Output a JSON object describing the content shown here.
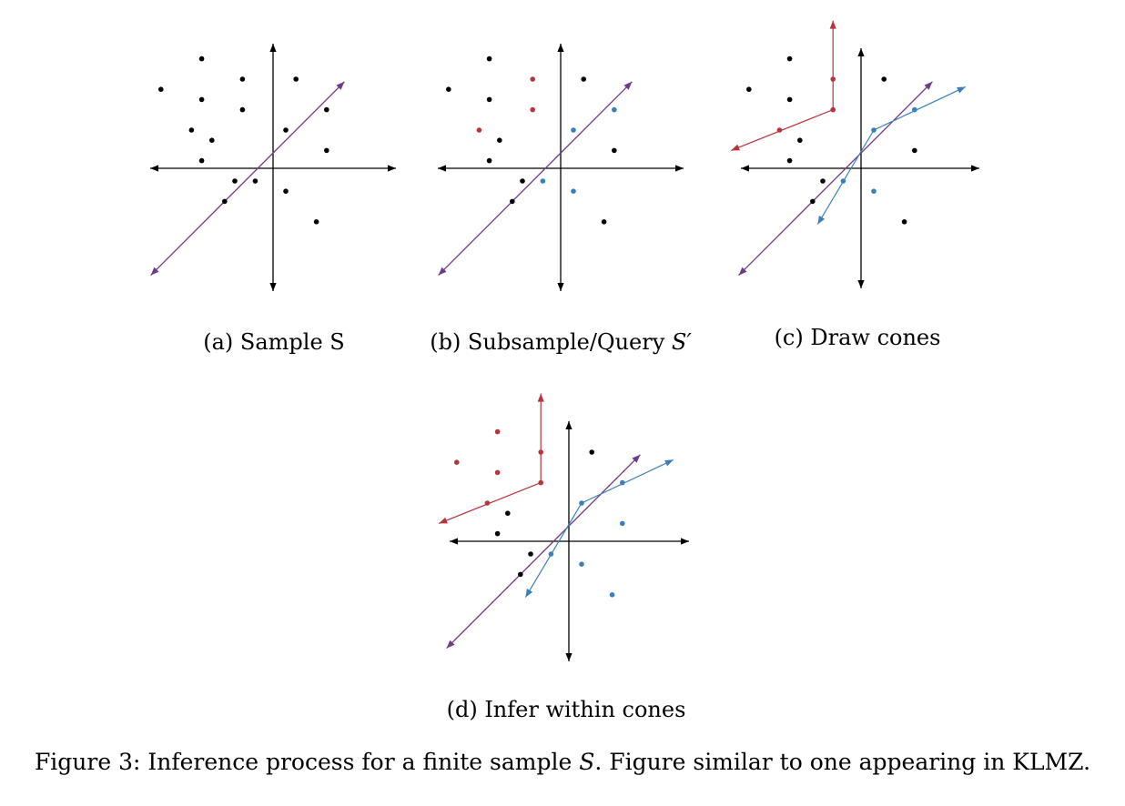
{
  "colors": {
    "axis": "#000000",
    "black_point": "#000000",
    "red": "#b5353d",
    "blue": "#3a7fb8",
    "purple": "#6f3a8a"
  },
  "panels": [
    {
      "id": "a",
      "caption_prefix": "(a) Sample S",
      "caption_math": "",
      "points": [
        [
          -1.4,
          2.15,
          "k"
        ],
        [
          -0.6,
          1.75,
          "k"
        ],
        [
          0.45,
          1.75,
          "k"
        ],
        [
          -2.2,
          1.55,
          "k"
        ],
        [
          -1.4,
          1.35,
          "k"
        ],
        [
          -0.6,
          1.15,
          "k"
        ],
        [
          1.05,
          1.15,
          "k"
        ],
        [
          -1.6,
          0.75,
          "k"
        ],
        [
          0.25,
          0.75,
          "k"
        ],
        [
          -1.2,
          0.55,
          "k"
        ],
        [
          1.05,
          0.35,
          "k"
        ],
        [
          -1.4,
          0.15,
          "k"
        ],
        [
          -0.75,
          -0.25,
          "k"
        ],
        [
          -0.35,
          -0.25,
          "k"
        ],
        [
          0.25,
          -0.45,
          "k"
        ],
        [
          -0.95,
          -0.65,
          "k"
        ],
        [
          0.85,
          -1.05,
          "k"
        ]
      ],
      "cones": []
    },
    {
      "id": "b",
      "caption_prefix": "(b) Subsample/Query ",
      "caption_math": "S′",
      "points": [
        [
          -1.4,
          2.15,
          "k"
        ],
        [
          -0.55,
          1.75,
          "r"
        ],
        [
          0.45,
          1.75,
          "k"
        ],
        [
          -2.2,
          1.55,
          "k"
        ],
        [
          -1.4,
          1.35,
          "k"
        ],
        [
          -0.55,
          1.15,
          "r"
        ],
        [
          1.05,
          1.15,
          "b"
        ],
        [
          -1.6,
          0.75,
          "r"
        ],
        [
          0.25,
          0.75,
          "b"
        ],
        [
          -1.2,
          0.55,
          "k"
        ],
        [
          1.05,
          0.35,
          "k"
        ],
        [
          -1.4,
          0.15,
          "k"
        ],
        [
          -0.75,
          -0.25,
          "k"
        ],
        [
          -0.35,
          -0.25,
          "b"
        ],
        [
          0.25,
          -0.45,
          "b"
        ],
        [
          -0.95,
          -0.65,
          "k"
        ],
        [
          0.85,
          -1.05,
          "k"
        ]
      ],
      "cones": []
    },
    {
      "id": "c",
      "caption_prefix": "(c) Draw cones",
      "caption_math": "",
      "points": [
        [
          -1.4,
          2.15,
          "k"
        ],
        [
          0.45,
          1.75,
          "k"
        ],
        [
          -2.2,
          1.55,
          "k"
        ],
        [
          -1.4,
          1.35,
          "k"
        ],
        [
          1.05,
          0.35,
          "k"
        ],
        [
          -1.2,
          0.55,
          "k"
        ],
        [
          -1.4,
          0.15,
          "k"
        ],
        [
          -0.75,
          -0.25,
          "k"
        ],
        [
          -0.95,
          -0.65,
          "k"
        ],
        [
          0.85,
          -1.05,
          "k"
        ],
        [
          -0.55,
          1.75,
          "r"
        ],
        [
          -0.55,
          1.15,
          "r"
        ],
        [
          -1.6,
          0.75,
          "r"
        ],
        [
          1.05,
          1.15,
          "b"
        ],
        [
          0.25,
          0.75,
          "b"
        ],
        [
          -0.35,
          -0.25,
          "b"
        ],
        [
          0.25,
          -0.45,
          "b"
        ]
      ],
      "cones": [
        {
          "color": "r",
          "vertex": [
            -0.55,
            1.15
          ],
          "ends": [
            [
              -0.55,
              2.9
            ],
            [
              -2.55,
              0.35
            ]
          ]
        },
        {
          "color": "b",
          "vertex": [
            0.25,
            0.75
          ],
          "ends": [
            [
              2.05,
              1.6
            ],
            [
              -0.85,
              -1.1
            ]
          ]
        }
      ]
    },
    {
      "id": "d",
      "caption_prefix": "(d) Infer within cones",
      "caption_math": "",
      "points": [
        [
          -1.4,
          2.15,
          "r"
        ],
        [
          -2.2,
          1.55,
          "r"
        ],
        [
          -0.55,
          1.75,
          "r"
        ],
        [
          -1.4,
          1.35,
          "r"
        ],
        [
          -0.55,
          1.15,
          "r"
        ],
        [
          -1.6,
          0.75,
          "r"
        ],
        [
          0.45,
          1.75,
          "k"
        ],
        [
          -1.2,
          0.55,
          "k"
        ],
        [
          -1.4,
          0.15,
          "k"
        ],
        [
          -0.75,
          -0.25,
          "k"
        ],
        [
          -0.95,
          -0.65,
          "k"
        ],
        [
          1.05,
          1.15,
          "b"
        ],
        [
          0.25,
          0.75,
          "b"
        ],
        [
          1.05,
          0.35,
          "b"
        ],
        [
          -0.35,
          -0.25,
          "b"
        ],
        [
          0.25,
          -0.45,
          "b"
        ],
        [
          0.85,
          -1.05,
          "b"
        ]
      ],
      "cones": [
        {
          "color": "r",
          "vertex": [
            -0.55,
            1.15
          ],
          "ends": [
            [
              -0.55,
              2.9
            ],
            [
              -2.55,
              0.35
            ]
          ]
        },
        {
          "color": "b",
          "vertex": [
            0.25,
            0.75
          ],
          "ends": [
            [
              2.05,
              1.6
            ],
            [
              -0.85,
              -1.1
            ]
          ]
        }
      ]
    }
  ],
  "figure_caption": {
    "prefix": "Figure 3: Inference process for a finite sample ",
    "math": "S",
    "suffix": ". Figure similar to one appearing in KLMZ."
  }
}
